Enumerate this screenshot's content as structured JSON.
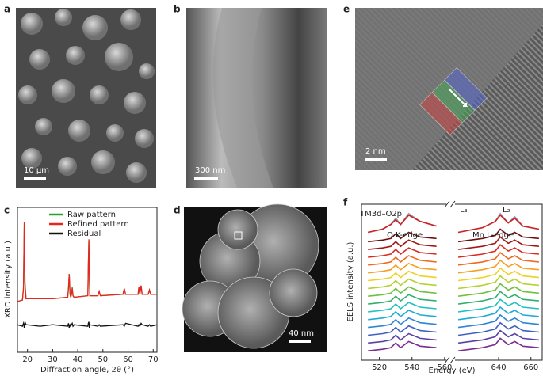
{
  "panel_labels": [
    "a",
    "b",
    "c",
    "d",
    "e",
    "f"
  ],
  "scale_bars": [
    "10 µm",
    "300 nm",
    "2 nm",
    "40 nm"
  ],
  "chart_data": [
    {
      "type": "line",
      "xlabel": "Diffraction angle, 2θ (°)",
      "ylabel": "XRD intensity (a.u.)",
      "xlim": [
        16,
        71.5
      ],
      "xticks": [
        20,
        30,
        40,
        50,
        60,
        70
      ],
      "ylim": [
        0,
        100
      ],
      "x": [
        16,
        18,
        18.4,
        18.7,
        19,
        19.4,
        25,
        30,
        36,
        36.3,
        36.6,
        36.9,
        37.2,
        37.5,
        37.8,
        38.1,
        38.5,
        44,
        44.2,
        44.4,
        44.6,
        44.8,
        48,
        48.5,
        49,
        58,
        58.5,
        59,
        64,
        64.3,
        64.7,
        65.2,
        65.6,
        68,
        68.5,
        69,
        71.5
      ],
      "series": [
        {
          "name": "Raw pattern",
          "color": "#2ca02c",
          "values": [
            35,
            36,
            45,
            89,
            48,
            37,
            37,
            37,
            38,
            45,
            54,
            40,
            38,
            40,
            45,
            39,
            38,
            39,
            60,
            77,
            55,
            39,
            39,
            42,
            39,
            40,
            44,
            40,
            40,
            45,
            40,
            46,
            40,
            40,
            43,
            40,
            40
          ]
        },
        {
          "name": "Refined pattern",
          "color": "#e8251f",
          "values": [
            35,
            36,
            44,
            90,
            47,
            37,
            37,
            37,
            38,
            44,
            54,
            41,
            38,
            40,
            44,
            39,
            38,
            39,
            59,
            78,
            54,
            39,
            39,
            42,
            39,
            40,
            44,
            40,
            40,
            45,
            40,
            46,
            40,
            40,
            43,
            40,
            40
          ]
        },
        {
          "name": "Residual",
          "color": "#111111",
          "values": [
            19,
            18,
            20,
            17,
            21,
            19,
            18,
            19,
            18,
            20,
            17,
            19,
            18,
            19,
            20,
            18,
            19,
            18,
            20,
            21,
            17,
            19,
            18,
            19,
            18,
            19,
            18,
            20,
            18,
            19,
            18,
            20,
            19,
            18,
            19,
            18,
            19
          ]
        }
      ]
    },
    {
      "type": "line",
      "xlabel": "Energy (eV)",
      "ylabel": "EELS intensity (a.u.)",
      "ylim": [
        0,
        100
      ],
      "annotations": [
        "TM3d–O2p",
        "O K-edge",
        "Mn L-edge",
        "L₃",
        "L₂"
      ],
      "panels": [
        {
          "xlim": [
            509,
            562
          ],
          "xticks": [
            520,
            540,
            560
          ],
          "x": [
            513,
            522,
            527,
            530,
            533,
            538,
            545,
            555
          ],
          "series": [
            {
              "color": "#7b2d8e",
              "values": [
                6,
                7,
                8,
                11,
                8,
                12,
                9,
                8
              ]
            },
            {
              "color": "#5a3fa6",
              "values": [
                11,
                12,
                13,
                16,
                13,
                17,
                14,
                13
              ]
            },
            {
              "color": "#3f5fbf",
              "values": [
                16,
                17,
                18,
                21,
                18,
                22,
                19,
                18
              ]
            },
            {
              "color": "#2f86d0",
              "values": [
                21,
                22,
                23,
                26,
                23,
                27,
                24,
                23
              ]
            },
            {
              "color": "#22a9d8",
              "values": [
                26,
                27,
                28,
                31,
                28,
                32,
                29,
                28
              ]
            },
            {
              "color": "#20c0c0",
              "values": [
                31,
                32,
                33,
                36,
                33,
                37,
                34,
                33
              ]
            },
            {
              "color": "#30b070",
              "values": [
                36,
                37,
                38,
                41,
                38,
                42,
                39,
                38
              ]
            },
            {
              "color": "#70c040",
              "values": [
                41,
                42,
                43,
                46,
                43,
                47,
                44,
                43
              ]
            },
            {
              "color": "#b5d030",
              "values": [
                46,
                47,
                48,
                51,
                48,
                52,
                49,
                48
              ]
            },
            {
              "color": "#f0d020",
              "values": [
                51,
                52,
                53,
                56,
                53,
                57,
                54,
                53
              ]
            },
            {
              "color": "#f5a020",
              "values": [
                56,
                57,
                58,
                61,
                58,
                62,
                59,
                58
              ]
            },
            {
              "color": "#ee6a20",
              "values": [
                61,
                62,
                63,
                66,
                63,
                67,
                64,
                63
              ]
            },
            {
              "color": "#d82a20",
              "values": [
                66,
                67,
                68,
                71,
                68,
                72,
                69,
                68
              ]
            },
            {
              "color": "#a01818",
              "values": [
                71,
                72,
                73,
                76,
                73,
                77,
                74,
                73
              ]
            },
            {
              "color": "#6b1010",
              "values": [
                76,
                77,
                78,
                81,
                78,
                82,
                79,
                78
              ]
            },
            {
              "color": "#8fa0b8",
              "values": [
                82,
                84,
                87,
                91,
                87,
                94,
                89,
                86
              ]
            },
            {
              "color": "#d02020",
              "values": [
                82,
                84,
                87,
                90,
                87,
                93,
                89,
                86
              ]
            }
          ]
        },
        {
          "xlim": [
            612,
            667
          ],
          "xticks": [
            640,
            660
          ],
          "x": [
            615,
            630,
            638,
            641,
            646,
            650,
            655,
            665
          ],
          "series": [
            {
              "color": "#7b2d8e",
              "values": [
                6,
                8,
                10,
                14,
                10,
                12,
                9,
                8
              ]
            },
            {
              "color": "#5a3fa6",
              "values": [
                11,
                13,
                15,
                19,
                15,
                17,
                14,
                13
              ]
            },
            {
              "color": "#3f5fbf",
              "values": [
                16,
                18,
                20,
                24,
                20,
                22,
                19,
                18
              ]
            },
            {
              "color": "#2f86d0",
              "values": [
                21,
                23,
                25,
                29,
                25,
                27,
                24,
                23
              ]
            },
            {
              "color": "#22a9d8",
              "values": [
                26,
                28,
                30,
                34,
                30,
                32,
                29,
                28
              ]
            },
            {
              "color": "#20c0c0",
              "values": [
                31,
                33,
                35,
                39,
                35,
                37,
                34,
                33
              ]
            },
            {
              "color": "#30b070",
              "values": [
                36,
                38,
                40,
                44,
                40,
                42,
                39,
                38
              ]
            },
            {
              "color": "#70c040",
              "values": [
                41,
                43,
                45,
                49,
                45,
                47,
                44,
                43
              ]
            },
            {
              "color": "#b5d030",
              "values": [
                46,
                48,
                50,
                54,
                50,
                52,
                49,
                48
              ]
            },
            {
              "color": "#f0d020",
              "values": [
                51,
                53,
                55,
                59,
                55,
                57,
                54,
                53
              ]
            },
            {
              "color": "#f5a020",
              "values": [
                56,
                58,
                60,
                64,
                60,
                62,
                59,
                58
              ]
            },
            {
              "color": "#ee6a20",
              "values": [
                61,
                63,
                65,
                69,
                65,
                67,
                64,
                63
              ]
            },
            {
              "color": "#d82a20",
              "values": [
                66,
                68,
                70,
                74,
                70,
                72,
                69,
                68
              ]
            },
            {
              "color": "#a01818",
              "values": [
                71,
                73,
                75,
                79,
                75,
                77,
                74,
                73
              ]
            },
            {
              "color": "#6b1010",
              "values": [
                76,
                78,
                80,
                84,
                80,
                82,
                79,
                78
              ]
            },
            {
              "color": "#8fa0b8",
              "values": [
                82,
                85,
                89,
                94,
                88,
                92,
                86,
                84
              ]
            },
            {
              "color": "#d02020",
              "values": [
                82,
                85,
                89,
                93,
                88,
                91,
                86,
                84
              ]
            }
          ]
        }
      ]
    }
  ]
}
